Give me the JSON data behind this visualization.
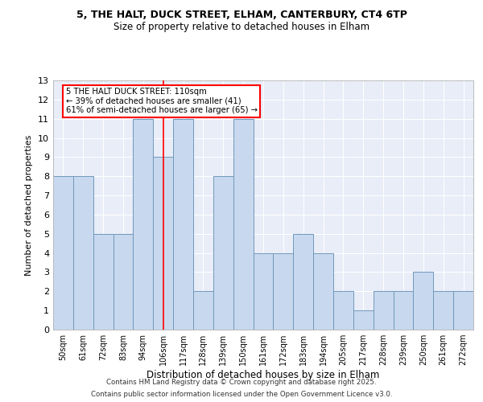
{
  "title1": "5, THE HALT, DUCK STREET, ELHAM, CANTERBURY, CT4 6TP",
  "title2": "Size of property relative to detached houses in Elham",
  "xlabel": "Distribution of detached houses by size in Elham",
  "ylabel": "Number of detached properties",
  "bins": [
    "50sqm",
    "61sqm",
    "72sqm",
    "83sqm",
    "94sqm",
    "106sqm",
    "117sqm",
    "128sqm",
    "139sqm",
    "150sqm",
    "161sqm",
    "172sqm",
    "183sqm",
    "194sqm",
    "205sqm",
    "217sqm",
    "228sqm",
    "239sqm",
    "250sqm",
    "261sqm",
    "272sqm"
  ],
  "values": [
    8,
    8,
    5,
    5,
    11,
    9,
    11,
    2,
    8,
    11,
    4,
    4,
    5,
    4,
    2,
    1,
    2,
    2,
    3,
    2,
    2
  ],
  "bar_color": "#c8d8ee",
  "bar_edge_color": "#7099bb",
  "red_line_x": 5.5,
  "annotation_text": "5 THE HALT DUCK STREET: 110sqm\n← 39% of detached houses are smaller (41)\n61% of semi-detached houses are larger (65) →",
  "ylim": [
    0,
    13
  ],
  "yticks": [
    0,
    1,
    2,
    3,
    4,
    5,
    6,
    7,
    8,
    9,
    10,
    11,
    12,
    13
  ],
  "plot_bg_color": "#e8edf8",
  "grid_color": "#ffffff",
  "footer1": "Contains HM Land Registry data © Crown copyright and database right 2025.",
  "footer2": "Contains public sector information licensed under the Open Government Licence v3.0."
}
